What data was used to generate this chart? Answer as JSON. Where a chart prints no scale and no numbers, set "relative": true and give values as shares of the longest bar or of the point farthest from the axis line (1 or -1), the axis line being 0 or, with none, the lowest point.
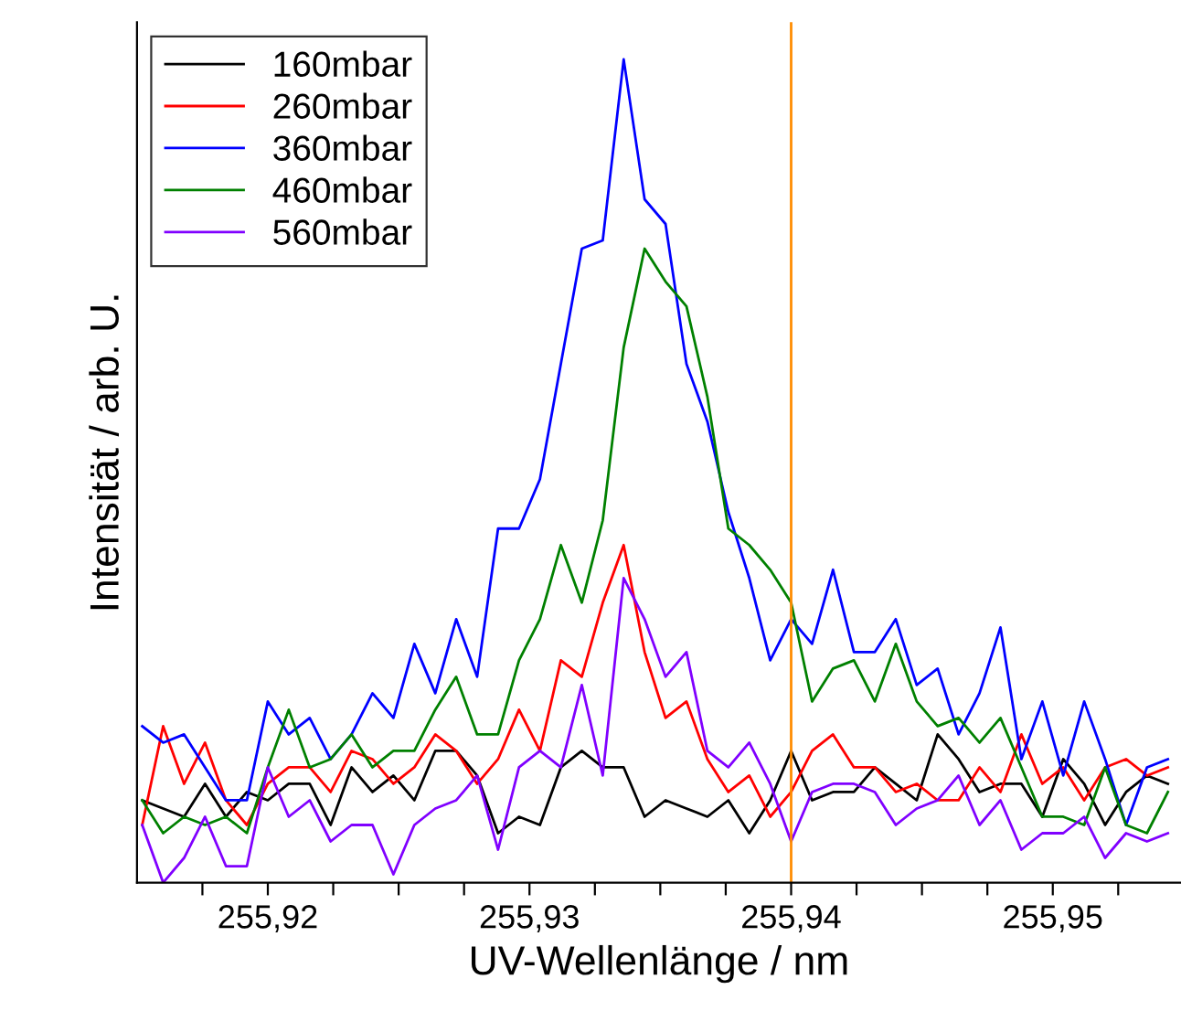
{
  "chart_data": {
    "type": "line",
    "relative": true,
    "xlabel": "UV-Wellenlänge / nm",
    "ylabel": "Intensität / arb. U.",
    "xlim": [
      255.915,
      255.9549
    ],
    "xticks": [
      {
        "value": 255.9175,
        "label": null
      },
      {
        "value": 255.92,
        "label": "255,92"
      },
      {
        "value": 255.9225,
        "label": null
      },
      {
        "value": 255.925,
        "label": null
      },
      {
        "value": 255.9275,
        "label": null
      },
      {
        "value": 255.93,
        "label": "255,93"
      },
      {
        "value": 255.9325,
        "label": null
      },
      {
        "value": 255.935,
        "label": null
      },
      {
        "value": 255.9375,
        "label": null
      },
      {
        "value": 255.94,
        "label": "255,94"
      },
      {
        "value": 255.9425,
        "label": null
      },
      {
        "value": 255.945,
        "label": null
      },
      {
        "value": 255.9475,
        "label": null
      },
      {
        "value": 255.95,
        "label": "255,95"
      },
      {
        "value": 255.9525,
        "label": null
      }
    ],
    "x": [
      255.9152,
      255.916,
      255.9168,
      255.9176,
      255.9184,
      255.9192,
      255.92,
      255.9208,
      255.9216,
      255.9224,
      255.9232,
      255.924,
      255.9248,
      255.9256,
      255.9264,
      255.9272,
      255.928,
      255.9288,
      255.9296,
      255.9304,
      255.9312,
      255.932,
      255.9328,
      255.9336,
      255.9344,
      255.9352,
      255.936,
      255.9368,
      255.9376,
      255.9384,
      255.9392,
      255.94,
      255.9408,
      255.9416,
      255.9424,
      255.9432,
      255.944,
      255.9448,
      255.9456,
      255.9464,
      255.9472,
      255.948,
      255.9488,
      255.9496,
      255.9504,
      255.9512,
      255.952,
      255.9528,
      255.9536,
      255.9544
    ],
    "series": [
      {
        "name": "160mbar",
        "color": "#000000",
        "values": [
          0.1,
          0.09,
          0.08,
          0.12,
          0.08,
          0.11,
          0.1,
          0.12,
          0.12,
          0.07,
          0.14,
          0.11,
          0.13,
          0.1,
          0.16,
          0.16,
          0.13,
          0.06,
          0.08,
          0.07,
          0.14,
          0.16,
          0.14,
          0.14,
          0.08,
          0.1,
          0.09,
          0.08,
          0.1,
          0.06,
          0.1,
          0.16,
          0.1,
          0.11,
          0.11,
          0.14,
          0.12,
          0.1,
          0.18,
          0.15,
          0.11,
          0.12,
          0.12,
          0.08,
          0.15,
          0.12,
          0.07,
          0.11,
          0.13,
          0.12
        ]
      },
      {
        "name": "260mbar",
        "color": "#ff0000",
        "values": [
          0.07,
          0.19,
          0.12,
          0.17,
          0.1,
          0.07,
          0.12,
          0.14,
          0.14,
          0.11,
          0.16,
          0.15,
          0.12,
          0.14,
          0.18,
          0.16,
          0.12,
          0.15,
          0.21,
          0.16,
          0.27,
          0.25,
          0.34,
          0.41,
          0.28,
          0.2,
          0.22,
          0.15,
          0.11,
          0.13,
          0.08,
          0.11,
          0.16,
          0.18,
          0.14,
          0.14,
          0.11,
          0.12,
          0.1,
          0.1,
          0.14,
          0.11,
          0.18,
          0.12,
          0.14,
          0.1,
          0.14,
          0.15,
          0.13,
          0.14
        ]
      },
      {
        "name": "360mbar",
        "color": "#0000ff",
        "values": [
          0.19,
          0.17,
          0.18,
          0.14,
          0.1,
          0.1,
          0.22,
          0.18,
          0.2,
          0.15,
          0.18,
          0.23,
          0.2,
          0.29,
          0.23,
          0.32,
          0.25,
          0.43,
          0.43,
          0.49,
          0.63,
          0.77,
          0.78,
          1.0,
          0.83,
          0.8,
          0.63,
          0.56,
          0.45,
          0.37,
          0.27,
          0.32,
          0.29,
          0.38,
          0.28,
          0.28,
          0.32,
          0.24,
          0.26,
          0.18,
          0.23,
          0.31,
          0.15,
          0.22,
          0.13,
          0.22,
          0.15,
          0.07,
          0.14,
          0.15
        ]
      },
      {
        "name": "460mbar",
        "color": "#008000",
        "values": [
          0.1,
          0.06,
          0.08,
          0.07,
          0.08,
          0.06,
          0.14,
          0.21,
          0.14,
          0.15,
          0.18,
          0.14,
          0.16,
          0.16,
          0.21,
          0.25,
          0.18,
          0.18,
          0.27,
          0.32,
          0.41,
          0.34,
          0.44,
          0.65,
          0.77,
          0.73,
          0.7,
          0.59,
          0.43,
          0.41,
          0.38,
          0.34,
          0.22,
          0.26,
          0.27,
          0.22,
          0.29,
          0.22,
          0.19,
          0.2,
          0.17,
          0.2,
          0.14,
          0.08,
          0.08,
          0.07,
          0.14,
          0.07,
          0.06,
          0.11
        ]
      },
      {
        "name": "560mbar",
        "color": "#8000ff",
        "values": [
          0.07,
          0.0,
          0.03,
          0.08,
          0.02,
          0.02,
          0.14,
          0.08,
          0.1,
          0.05,
          0.07,
          0.07,
          0.01,
          0.07,
          0.09,
          0.1,
          0.13,
          0.04,
          0.14,
          0.16,
          0.14,
          0.24,
          0.13,
          0.37,
          0.32,
          0.25,
          0.28,
          0.16,
          0.14,
          0.17,
          0.12,
          0.05,
          0.11,
          0.12,
          0.12,
          0.11,
          0.07,
          0.09,
          0.1,
          0.13,
          0.07,
          0.1,
          0.04,
          0.06,
          0.06,
          0.08,
          0.03,
          0.06,
          0.05,
          0.06
        ]
      }
    ],
    "ref_lines": [
      {
        "axis": "x",
        "value": 255.94,
        "color": "#ff8c00",
        "line_style": "solid"
      }
    ],
    "legend": "top left",
    "grid": false,
    "marker": "none",
    "line_style": "solid"
  }
}
